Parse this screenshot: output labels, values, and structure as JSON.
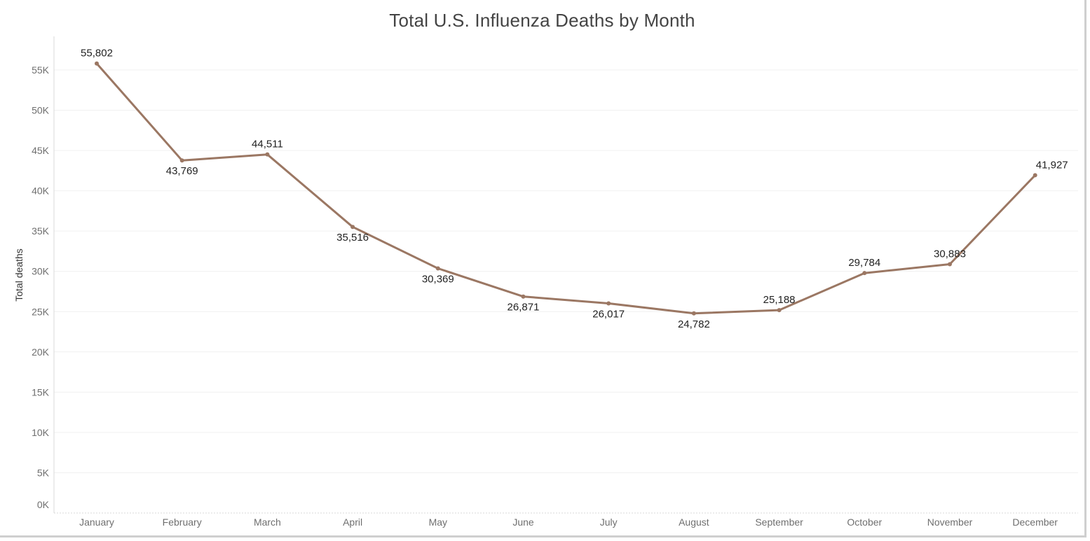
{
  "chart_data": {
    "type": "line",
    "title": "Total U.S. Influenza Deaths by Month",
    "xlabel": "",
    "ylabel": "Total deaths",
    "ylim": [
      0,
      55000
    ],
    "y_ticks": [
      "0K",
      "5K",
      "10K",
      "15K",
      "20K",
      "25K",
      "30K",
      "35K",
      "40K",
      "45K",
      "50K",
      "55K"
    ],
    "categories": [
      "January",
      "February",
      "March",
      "April",
      "May",
      "June",
      "July",
      "August",
      "September",
      "October",
      "November",
      "December"
    ],
    "series": [
      {
        "values": [
          55802,
          43769,
          44511,
          35516,
          30369,
          26871,
          26017,
          24782,
          25188,
          29784,
          30883,
          41927
        ],
        "value_labels": [
          "55,802",
          "43,769",
          "44,511",
          "35,516",
          "30,369",
          "26,871",
          "26,017",
          "24,782",
          "25,188",
          "29,784",
          "30,883",
          "41,927"
        ],
        "color": "#9b7763"
      }
    ],
    "grid": true,
    "legend": "none"
  }
}
